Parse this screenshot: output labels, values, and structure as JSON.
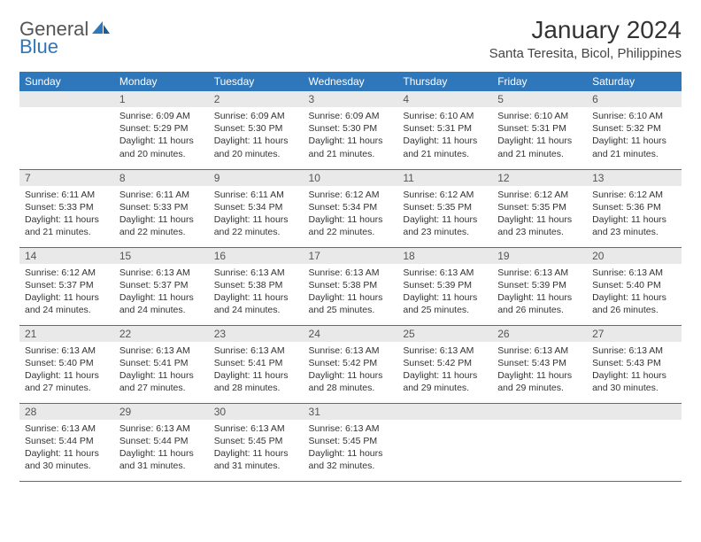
{
  "brand": {
    "line1": "General",
    "line2": "Blue"
  },
  "title": "January 2024",
  "location": "Santa Teresita, Bicol, Philippines",
  "colors": {
    "header_bg": "#2f77bb",
    "header_text": "#ffffff",
    "daynum_bg": "#e9e9e9",
    "row_divider": "#2f77bb",
    "body_text": "#333333",
    "page_bg": "#ffffff"
  },
  "layout": {
    "columns": 7,
    "rows": 5,
    "first_day_column_index": 1
  },
  "weekdays": [
    "Sunday",
    "Monday",
    "Tuesday",
    "Wednesday",
    "Thursday",
    "Friday",
    "Saturday"
  ],
  "fonts": {
    "title_size_pt": 21,
    "location_size_pt": 11,
    "weekday_size_pt": 9,
    "daynum_size_pt": 9,
    "body_size_pt": 8
  },
  "days": [
    {
      "n": 1,
      "sunrise": "6:09 AM",
      "sunset": "5:29 PM",
      "daylight": "11 hours and 20 minutes."
    },
    {
      "n": 2,
      "sunrise": "6:09 AM",
      "sunset": "5:30 PM",
      "daylight": "11 hours and 20 minutes."
    },
    {
      "n": 3,
      "sunrise": "6:09 AM",
      "sunset": "5:30 PM",
      "daylight": "11 hours and 21 minutes."
    },
    {
      "n": 4,
      "sunrise": "6:10 AM",
      "sunset": "5:31 PM",
      "daylight": "11 hours and 21 minutes."
    },
    {
      "n": 5,
      "sunrise": "6:10 AM",
      "sunset": "5:31 PM",
      "daylight": "11 hours and 21 minutes."
    },
    {
      "n": 6,
      "sunrise": "6:10 AM",
      "sunset": "5:32 PM",
      "daylight": "11 hours and 21 minutes."
    },
    {
      "n": 7,
      "sunrise": "6:11 AM",
      "sunset": "5:33 PM",
      "daylight": "11 hours and 21 minutes."
    },
    {
      "n": 8,
      "sunrise": "6:11 AM",
      "sunset": "5:33 PM",
      "daylight": "11 hours and 22 minutes."
    },
    {
      "n": 9,
      "sunrise": "6:11 AM",
      "sunset": "5:34 PM",
      "daylight": "11 hours and 22 minutes."
    },
    {
      "n": 10,
      "sunrise": "6:12 AM",
      "sunset": "5:34 PM",
      "daylight": "11 hours and 22 minutes."
    },
    {
      "n": 11,
      "sunrise": "6:12 AM",
      "sunset": "5:35 PM",
      "daylight": "11 hours and 23 minutes."
    },
    {
      "n": 12,
      "sunrise": "6:12 AM",
      "sunset": "5:35 PM",
      "daylight": "11 hours and 23 minutes."
    },
    {
      "n": 13,
      "sunrise": "6:12 AM",
      "sunset": "5:36 PM",
      "daylight": "11 hours and 23 minutes."
    },
    {
      "n": 14,
      "sunrise": "6:12 AM",
      "sunset": "5:37 PM",
      "daylight": "11 hours and 24 minutes."
    },
    {
      "n": 15,
      "sunrise": "6:13 AM",
      "sunset": "5:37 PM",
      "daylight": "11 hours and 24 minutes."
    },
    {
      "n": 16,
      "sunrise": "6:13 AM",
      "sunset": "5:38 PM",
      "daylight": "11 hours and 24 minutes."
    },
    {
      "n": 17,
      "sunrise": "6:13 AM",
      "sunset": "5:38 PM",
      "daylight": "11 hours and 25 minutes."
    },
    {
      "n": 18,
      "sunrise": "6:13 AM",
      "sunset": "5:39 PM",
      "daylight": "11 hours and 25 minutes."
    },
    {
      "n": 19,
      "sunrise": "6:13 AM",
      "sunset": "5:39 PM",
      "daylight": "11 hours and 26 minutes."
    },
    {
      "n": 20,
      "sunrise": "6:13 AM",
      "sunset": "5:40 PM",
      "daylight": "11 hours and 26 minutes."
    },
    {
      "n": 21,
      "sunrise": "6:13 AM",
      "sunset": "5:40 PM",
      "daylight": "11 hours and 27 minutes."
    },
    {
      "n": 22,
      "sunrise": "6:13 AM",
      "sunset": "5:41 PM",
      "daylight": "11 hours and 27 minutes."
    },
    {
      "n": 23,
      "sunrise": "6:13 AM",
      "sunset": "5:41 PM",
      "daylight": "11 hours and 28 minutes."
    },
    {
      "n": 24,
      "sunrise": "6:13 AM",
      "sunset": "5:42 PM",
      "daylight": "11 hours and 28 minutes."
    },
    {
      "n": 25,
      "sunrise": "6:13 AM",
      "sunset": "5:42 PM",
      "daylight": "11 hours and 29 minutes."
    },
    {
      "n": 26,
      "sunrise": "6:13 AM",
      "sunset": "5:43 PM",
      "daylight": "11 hours and 29 minutes."
    },
    {
      "n": 27,
      "sunrise": "6:13 AM",
      "sunset": "5:43 PM",
      "daylight": "11 hours and 30 minutes."
    },
    {
      "n": 28,
      "sunrise": "6:13 AM",
      "sunset": "5:44 PM",
      "daylight": "11 hours and 30 minutes."
    },
    {
      "n": 29,
      "sunrise": "6:13 AM",
      "sunset": "5:44 PM",
      "daylight": "11 hours and 31 minutes."
    },
    {
      "n": 30,
      "sunrise": "6:13 AM",
      "sunset": "5:45 PM",
      "daylight": "11 hours and 31 minutes."
    },
    {
      "n": 31,
      "sunrise": "6:13 AM",
      "sunset": "5:45 PM",
      "daylight": "11 hours and 32 minutes."
    }
  ],
  "labels": {
    "sunrise": "Sunrise:",
    "sunset": "Sunset:",
    "daylight": "Daylight:"
  }
}
